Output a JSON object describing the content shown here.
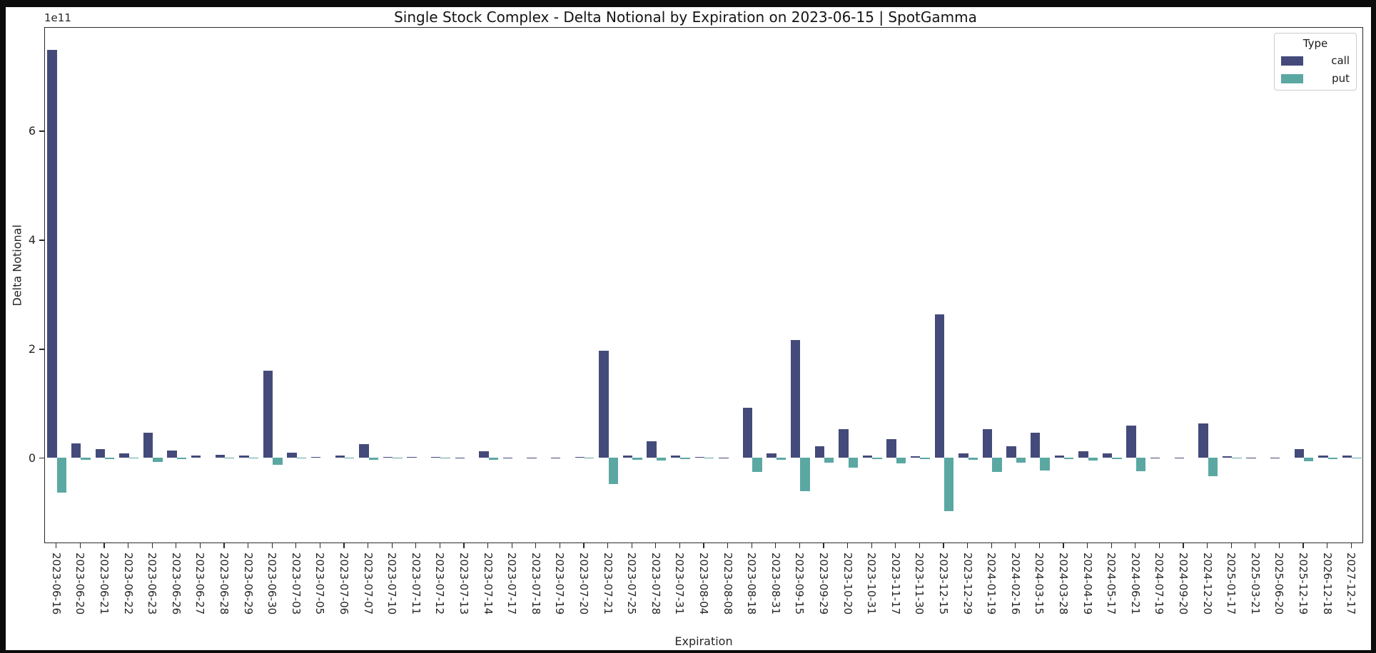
{
  "figure": {
    "background_color": "#ffffff",
    "frame_color": "#0c0c0c"
  },
  "chart_data": {
    "type": "bar",
    "title": "Single Stock Complex - Delta Notional by Expiration on 2023-06-15 | SpotGamma",
    "xlabel": "Expiration",
    "ylabel": "Delta Notional",
    "offset_text": "1e11",
    "value_unit": "1e11",
    "ylim": [
      -1.56,
      7.91
    ],
    "yticks": [
      0,
      2,
      4,
      6
    ],
    "grid": false,
    "legend": {
      "title": "Type",
      "position": "upper right",
      "entries": [
        {
          "label": "call",
          "color": "#444b7a"
        },
        {
          "label": "put",
          "color": "#5ba8a3"
        }
      ]
    },
    "categories": [
      "2023-06-16",
      "2023-06-20",
      "2023-06-21",
      "2023-06-22",
      "2023-06-23",
      "2023-06-26",
      "2023-06-27",
      "2023-06-28",
      "2023-06-29",
      "2023-06-30",
      "2023-07-03",
      "2023-07-05",
      "2023-07-06",
      "2023-07-07",
      "2023-07-10",
      "2023-07-11",
      "2023-07-12",
      "2023-07-13",
      "2023-07-14",
      "2023-07-17",
      "2023-07-18",
      "2023-07-19",
      "2023-07-20",
      "2023-07-21",
      "2023-07-25",
      "2023-07-28",
      "2023-07-31",
      "2023-08-04",
      "2023-08-08",
      "2023-08-18",
      "2023-08-31",
      "2023-09-15",
      "2023-09-29",
      "2023-10-20",
      "2023-10-31",
      "2023-11-17",
      "2023-11-30",
      "2023-12-15",
      "2023-12-29",
      "2024-01-19",
      "2024-02-16",
      "2024-03-15",
      "2024-03-28",
      "2024-04-19",
      "2024-05-17",
      "2024-06-21",
      "2024-07-19",
      "2024-09-20",
      "2024-12-20",
      "2025-01-17",
      "2025-03-21",
      "2025-06-20",
      "2025-12-19",
      "2026-12-18",
      "2027-12-17"
    ],
    "series": [
      {
        "name": "call",
        "color": "#444b7a",
        "values": [
          7.49,
          0.27,
          0.16,
          0.09,
          0.47,
          0.13,
          0.04,
          0.06,
          0.05,
          1.6,
          0.1,
          0.02,
          0.05,
          0.25,
          0.02,
          0.02,
          0.02,
          0.01,
          0.12,
          0.01,
          0.01,
          0.01,
          0.02,
          1.97,
          0.05,
          0.3,
          0.04,
          0.02,
          0.01,
          0.92,
          0.09,
          2.17,
          0.21,
          0.53,
          0.04,
          0.35,
          0.03,
          2.64,
          0.09,
          0.53,
          0.21,
          0.46,
          0.04,
          0.12,
          0.08,
          0.59,
          0.01,
          0.01,
          0.63,
          0.03,
          0.01,
          0.01,
          0.16,
          0.05,
          0.05
        ]
      },
      {
        "name": "put",
        "color": "#5ba8a3",
        "values": [
          -0.64,
          -0.03,
          -0.02,
          -0.01,
          -0.07,
          -0.02,
          0.0,
          -0.01,
          -0.01,
          -0.13,
          -0.01,
          0.0,
          -0.01,
          -0.04,
          -0.01,
          0.0,
          -0.01,
          0.0,
          -0.04,
          0.0,
          0.0,
          0.0,
          -0.01,
          -0.48,
          -0.03,
          -0.05,
          -0.02,
          -0.01,
          0.0,
          -0.26,
          -0.03,
          -0.61,
          -0.08,
          -0.18,
          -0.02,
          -0.1,
          -0.02,
          -0.98,
          -0.03,
          -0.25,
          -0.08,
          -0.23,
          -0.02,
          -0.05,
          -0.02,
          -0.24,
          0.0,
          0.0,
          -0.34,
          -0.01,
          0.0,
          0.0,
          -0.06,
          -0.02,
          -0.01
        ]
      }
    ]
  }
}
